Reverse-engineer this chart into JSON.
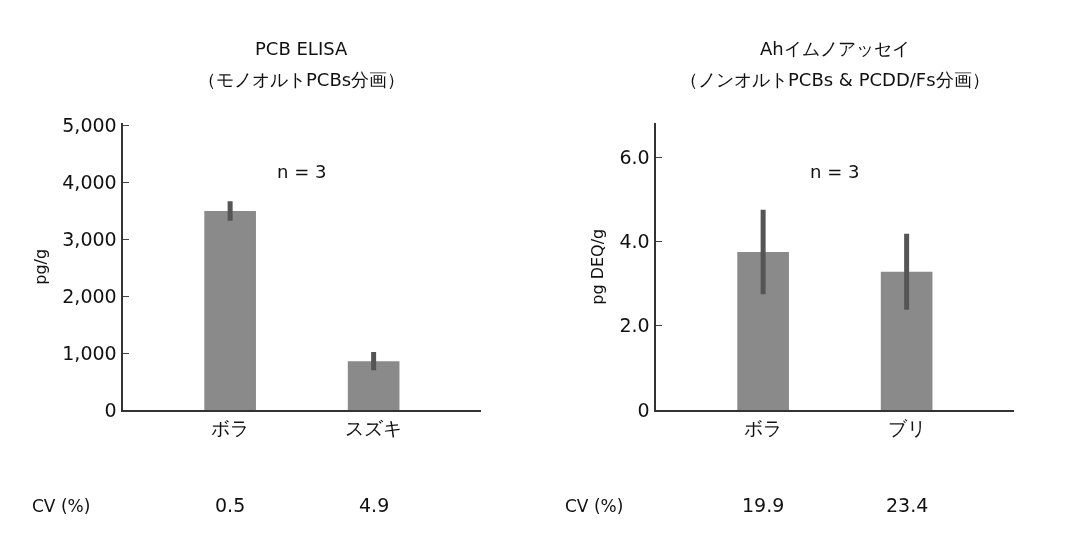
{
  "chart_data": [
    {
      "type": "bar",
      "title": "PCB ELISA",
      "subtitle": "（モノオルトPCBs分画）",
      "ylabel": "pg/g",
      "categories": [
        "ボラ",
        "スズキ"
      ],
      "values": [
        3500,
        860
      ],
      "errors": [
        170,
        160
      ],
      "color": "#8a8a8a",
      "ylim": [
        0,
        5040
      ],
      "yticks": [
        0,
        {
          "value": 1000,
          "label": "1,000"
        },
        {
          "value": 2000,
          "label": "2,000"
        },
        {
          "value": 3000,
          "label": "3,000"
        },
        {
          "value": 4000,
          "label": "4,000"
        },
        {
          "value": 5000,
          "label": "5,000"
        }
      ],
      "annotations": [
        "n = 3",
        "CV (%)",
        "0.5",
        "4.9"
      ]
    },
    {
      "type": "bar",
      "title": "Ahイムノアッセイ",
      "subtitle": "（ノンオルトPCBs & PCDD/Fs分画）",
      "ylabel": "pg DEQ/g",
      "categories": [
        "ボラ",
        "ブリ"
      ],
      "values": [
        3.75,
        3.28
      ],
      "errors": [
        1.0,
        0.9
      ],
      "color": "#8a8a8a",
      "ylim": [
        0,
        6.8
      ],
      "yticks": [
        0,
        {
          "value": 2,
          "label": "2.0"
        },
        {
          "value": 4,
          "label": "4.0"
        },
        {
          "value": 6,
          "label": "6.0"
        }
      ],
      "annotations": [
        "n = 3",
        "CV (%)",
        "19.9",
        "23.4"
      ]
    }
  ]
}
